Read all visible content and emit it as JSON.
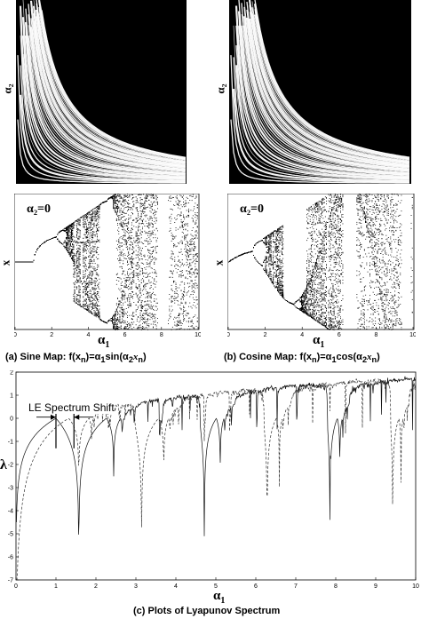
{
  "captions": {
    "a": "(a) Sine Map: f(x",
    "a_rest": ")=α",
    "a_fn": "sin(α",
    "a_end": ")",
    "b": "(b) Cosine Map: f(x",
    "b_rest": ")=α",
    "b_fn": "cos(α",
    "b_end": ")",
    "c": "(c) Plots of Lyapunov Spectrum",
    "sub_n": "n",
    "sub_1": "1",
    "sub_2": "2",
    "x_n": "x",
    "x_n_sub": "n"
  },
  "labels": {
    "alpha2_zero_a": "α₂=0",
    "alpha2_zero_b": "α₂=0",
    "alpha1_a": "α",
    "alpha1_b": "α",
    "alpha1_c": "α",
    "alpha_sub": "1",
    "alpha2_ylab_a": "α₂",
    "alpha2_ylab_b": "α₂",
    "x_ylab_a": "x",
    "x_ylab_b": "x",
    "lambda_ylab": "λ",
    "le_shift": "LE Spectrum Shift"
  },
  "chart_data": [
    {
      "id": "bifurcation-sine",
      "type": "scatter",
      "title": "",
      "xlabel": "α1",
      "xlim": [
        0,
        10
      ],
      "xticks": [
        "0",
        "2",
        "4",
        "6",
        "8",
        "10"
      ],
      "annotation": "α2=0",
      "map": "sine",
      "colors": {
        "points": "#000000",
        "background": "#ffffff"
      }
    },
    {
      "id": "bifurcation-cosine",
      "type": "scatter",
      "title": "",
      "xlabel": "α1",
      "xlim": [
        0,
        10
      ],
      "xticks": [
        "0",
        "2",
        "4",
        "6",
        "8",
        "10"
      ],
      "annotation": "α2=0",
      "map": "cosine",
      "colors": {
        "points": "#000000",
        "background": "#ffffff"
      }
    },
    {
      "id": "lyapunov-spectrum",
      "type": "line",
      "title": "",
      "xlabel": "α1",
      "xlim": [
        0,
        10
      ],
      "ylim": [
        -7,
        2
      ],
      "xticks": [
        "0",
        "1",
        "2",
        "3",
        "4",
        "5",
        "6",
        "7",
        "8",
        "9",
        "10"
      ],
      "yticks": [
        "2",
        "1",
        "0",
        "-1",
        "-2",
        "-3",
        "-4",
        "-5",
        "-6",
        "-7"
      ],
      "annotation": "LE Spectrum Shift",
      "series": [
        {
          "style": "solid",
          "map": "sine",
          "color": "#111111"
        },
        {
          "style": "dashed",
          "map": "cosine",
          "color": "#333333"
        }
      ]
    }
  ],
  "heatmaps": [
    {
      "id": "heatmap-sine",
      "colors": {
        "dark": "#000000",
        "light": "#ffffff"
      }
    },
    {
      "id": "heatmap-cosine",
      "colors": {
        "dark": "#000000",
        "light": "#ffffff"
      }
    }
  ]
}
